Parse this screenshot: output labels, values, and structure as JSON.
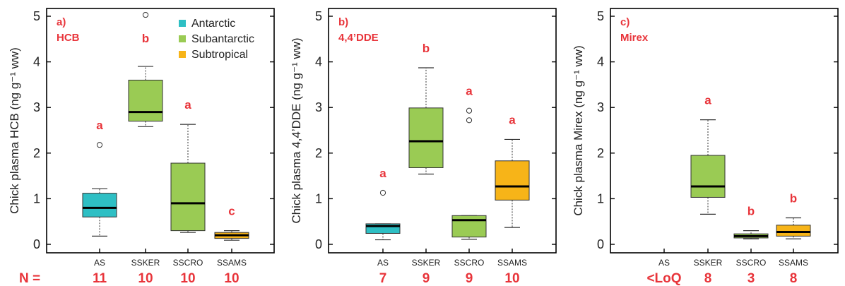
{
  "colors": {
    "Antarctic": "#2ebfc4",
    "Subantarctic": "#9acb54",
    "Subtropical": "#f7b418",
    "letter": "#e8343a",
    "axis": "#000000"
  },
  "legend": {
    "placement": "top-right",
    "items": [
      {
        "label": "Antarctic",
        "color": "#2ebfc4"
      },
      {
        "label": "Subantarctic",
        "color": "#9acb54"
      },
      {
        "label": "Subtropical",
        "color": "#f7b418"
      }
    ]
  },
  "n_row_label": "N =",
  "chart_data": [
    {
      "type": "boxplot",
      "panel_label": "a)",
      "compound": "HCB",
      "ylabel": "Chick plasma HCB (ng g⁻¹ ww)",
      "ylim": [
        0,
        5
      ],
      "yticks": [
        0,
        1,
        2,
        3,
        4,
        5
      ],
      "categories": [
        "AS",
        "SSKER",
        "SSCRO",
        "SSAMS"
      ],
      "groups": [
        "Antarctic",
        "Subantarctic",
        "Subantarctic",
        "Subtropical"
      ],
      "n": [
        "11",
        "10",
        "10",
        "10"
      ],
      "letters": [
        "a",
        "b",
        "a",
        "c"
      ],
      "boxes": [
        {
          "min": 0.18,
          "q1": 0.6,
          "median": 0.8,
          "q3": 1.12,
          "max": 1.22,
          "outliers": [
            2.18
          ]
        },
        {
          "min": 2.58,
          "q1": 2.7,
          "median": 2.9,
          "q3": 3.6,
          "max": 3.9,
          "outliers": [
            5.03
          ]
        },
        {
          "min": 0.26,
          "q1": 0.3,
          "median": 0.9,
          "q3": 1.78,
          "max": 2.63,
          "outliers": []
        },
        {
          "min": 0.09,
          "q1": 0.13,
          "median": 0.2,
          "q3": 0.26,
          "max": 0.3,
          "outliers": []
        }
      ]
    },
    {
      "type": "boxplot",
      "panel_label": "b)",
      "compound": "4,4’DDE",
      "ylabel": "Chick plasma 4,4’DDE (ng g⁻¹ ww)",
      "ylim": [
        0,
        5
      ],
      "yticks": [
        0,
        1,
        2,
        3,
        4,
        5
      ],
      "categories": [
        "AS",
        "SSKER",
        "SSCRO",
        "SSAMS"
      ],
      "groups": [
        "Antarctic",
        "Subantarctic",
        "Subantarctic",
        "Subtropical"
      ],
      "n": [
        "7",
        "9",
        "9",
        "10"
      ],
      "letters": [
        "a",
        "b",
        "a",
        "a"
      ],
      "boxes": [
        {
          "min": 0.1,
          "q1": 0.24,
          "median": 0.4,
          "q3": 0.45,
          "max": 0.45,
          "outliers": [
            1.13
          ]
        },
        {
          "min": 1.54,
          "q1": 1.68,
          "median": 2.26,
          "q3": 2.99,
          "max": 3.87,
          "outliers": []
        },
        {
          "min": 0.11,
          "q1": 0.16,
          "median": 0.53,
          "q3": 0.63,
          "max": 0.63,
          "outliers": [
            2.72,
            2.93
          ]
        },
        {
          "min": 0.37,
          "q1": 0.97,
          "median": 1.27,
          "q3": 1.83,
          "max": 2.3,
          "outliers": []
        }
      ]
    },
    {
      "type": "boxplot",
      "panel_label": "c)",
      "compound": "Mirex",
      "ylabel": "Chick plasma Mirex (ng g⁻¹ ww)",
      "ylim": [
        0,
        5
      ],
      "yticks": [
        0,
        1,
        2,
        3,
        4,
        5
      ],
      "categories": [
        "AS",
        "SSKER",
        "SSCRO",
        "SSAMS"
      ],
      "groups": [
        "Antarctic",
        "Subantarctic",
        "Subantarctic",
        "Subtropical"
      ],
      "n": [
        "<LoQ",
        "8",
        "3",
        "8"
      ],
      "letters": [
        "",
        "a",
        "b",
        "b"
      ],
      "boxes": [
        null,
        {
          "min": 0.66,
          "q1": 1.03,
          "median": 1.27,
          "q3": 1.95,
          "max": 2.73,
          "outliers": []
        },
        {
          "min": 0.12,
          "q1": 0.14,
          "median": 0.18,
          "q3": 0.23,
          "max": 0.3,
          "outliers": []
        },
        {
          "min": 0.12,
          "q1": 0.18,
          "median": 0.27,
          "q3": 0.42,
          "max": 0.58,
          "outliers": []
        }
      ]
    }
  ]
}
